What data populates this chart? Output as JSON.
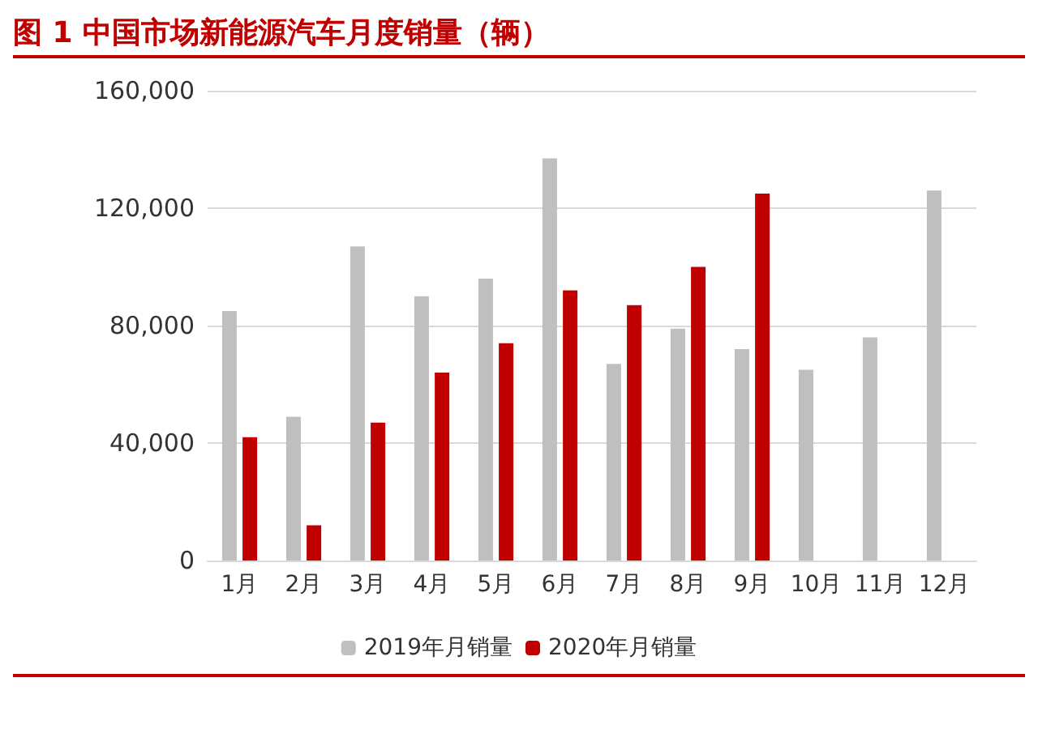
{
  "chart_data": {
    "type": "bar",
    "title": "图 1 中国市场新能源汽车月度销量（辆）",
    "categories": [
      "1月",
      "2月",
      "3月",
      "4月",
      "5月",
      "6月",
      "7月",
      "8月",
      "9月",
      "10月",
      "11月",
      "12月"
    ],
    "series": [
      {
        "name": "2019年月销量",
        "color": "#bfbfbf",
        "values": [
          85000,
          49000,
          107000,
          90000,
          96000,
          137000,
          67000,
          79000,
          72000,
          65000,
          76000,
          126000
        ]
      },
      {
        "name": "2020年月销量",
        "color": "#c00000",
        "values": [
          42000,
          12000,
          47000,
          64000,
          74000,
          92000,
          87000,
          100000,
          125000,
          null,
          null,
          null
        ]
      }
    ],
    "ylim": [
      0,
      160000
    ],
    "yticks": [
      0,
      {
        "value": 40000,
        "label": "40,000"
      },
      {
        "value": 80000,
        "label": "80,000"
      },
      {
        "value": 120000,
        "label": "120,000"
      },
      {
        "value": 160000,
        "label": "160,000"
      }
    ],
    "grid": "y",
    "legend": "bottom"
  }
}
